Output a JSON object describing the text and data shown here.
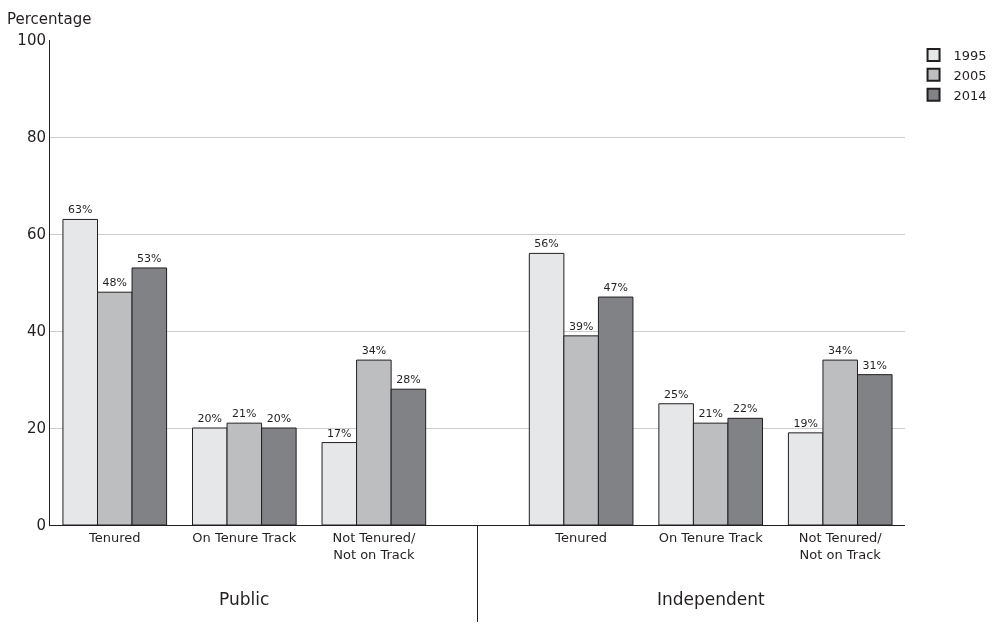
{
  "chart_data": {
    "type": "bar",
    "ylabel": "Percentage",
    "categories": [
      "Tenured",
      "On Tenure Track",
      "Not Tenured/\nNot on Track",
      "Tenured",
      "On Tenure Track",
      "Not Tenured/\nNot on Track"
    ],
    "series": [
      {
        "name": "1995",
        "color": "#e6e7e8",
        "values": [
          63,
          20,
          17,
          56,
          25,
          19
        ],
        "value_labels": [
          "63%",
          "20%",
          "17%",
          "56%",
          "25%",
          "19%"
        ]
      },
      {
        "name": "2005",
        "color": "#bcbec0",
        "values": [
          48,
          21,
          34,
          39,
          21,
          34
        ],
        "value_labels": [
          "48%",
          "21%",
          "34%",
          "39%",
          "21%",
          "34%"
        ]
      },
      {
        "name": "2014",
        "color": "#808285",
        "values": [
          53,
          20,
          28,
          47,
          22,
          31
        ],
        "value_labels": [
          "53%",
          "20%",
          "28%",
          "47%",
          "22%",
          "31%"
        ]
      }
    ],
    "annotations": [
      "Public",
      "Independent"
    ],
    "ylim": [
      0,
      100
    ],
    "yticks": [
      0,
      20,
      40,
      60,
      80,
      100
    ],
    "grid": "y",
    "legend": "top right"
  }
}
